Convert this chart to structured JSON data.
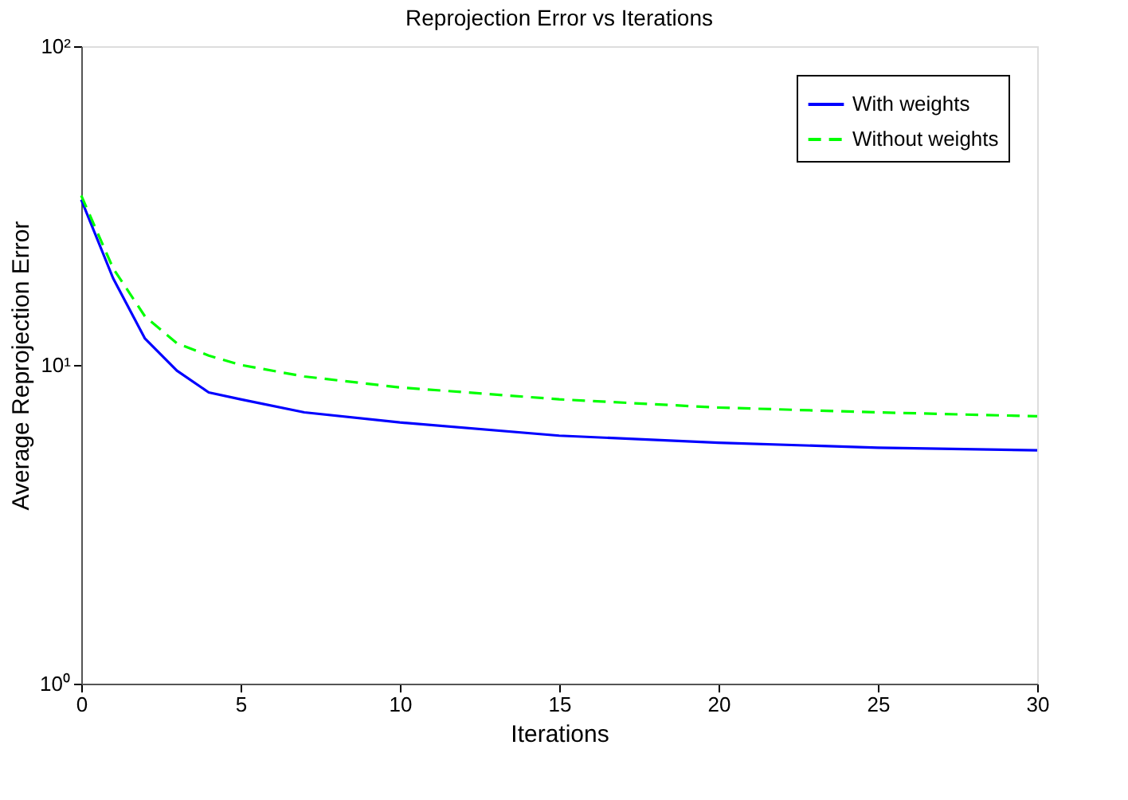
{
  "chart_data": {
    "type": "line",
    "title": "Reprojection Error vs Iterations",
    "xlabel": "Iterations",
    "ylabel": "Average Reprojection Error",
    "x": [
      0,
      1,
      2,
      3,
      4,
      5,
      7,
      10,
      15,
      20,
      25,
      30
    ],
    "series": [
      {
        "name": "With weights",
        "color": "#0000ff",
        "line_style": "solid",
        "values": [
          33,
          18.7,
          12.1,
          9.6,
          8.2,
          7.8,
          7.1,
          6.6,
          6.0,
          5.7,
          5.5,
          5.4
        ]
      },
      {
        "name": "Without weights",
        "color": "#00ff00",
        "line_style": "dashed",
        "values": [
          34,
          20.1,
          14.2,
          11.7,
          10.7,
          10.0,
          9.2,
          8.5,
          7.8,
          7.35,
          7.1,
          6.9
        ]
      }
    ],
    "log": "y",
    "xlim": [
      0,
      30
    ],
    "xticks": [
      0,
      5,
      10,
      15,
      20,
      25,
      30
    ],
    "ylim": [
      1,
      100
    ],
    "yticks": [
      {
        "value": 1,
        "label": "10⁰"
      },
      {
        "value": 10,
        "label": "10¹"
      },
      {
        "value": 100,
        "label": "10²"
      }
    ],
    "grid": false,
    "legend": "top right",
    "marker": "none"
  }
}
